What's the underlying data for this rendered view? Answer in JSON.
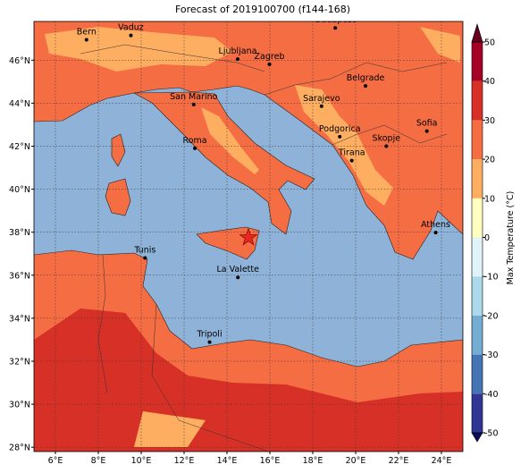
{
  "title": "Forecast of 2019100700 (f144-168)",
  "map": {
    "lonlim": [
      5,
      25
    ],
    "latlim": [
      27.8,
      47.8
    ],
    "grid": true,
    "lon_ticks": [
      {
        "value": 6,
        "label": "6°E"
      },
      {
        "value": 8,
        "label": "8°E"
      },
      {
        "value": 10,
        "label": "10°E"
      },
      {
        "value": 12,
        "label": "12°E"
      },
      {
        "value": 14,
        "label": "14°E"
      },
      {
        "value": 16,
        "label": "16°E"
      },
      {
        "value": 18,
        "label": "18°E"
      },
      {
        "value": 20,
        "label": "20°E"
      },
      {
        "value": 22,
        "label": "22°E"
      },
      {
        "value": 24,
        "label": "24°E"
      }
    ],
    "lat_ticks": [
      {
        "value": 28,
        "label": "28°N"
      },
      {
        "value": 30,
        "label": "30°N"
      },
      {
        "value": 32,
        "label": "32°N"
      },
      {
        "value": 34,
        "label": "34°N"
      },
      {
        "value": 36,
        "label": "36°N"
      },
      {
        "value": 38,
        "label": "38°N"
      },
      {
        "value": 40,
        "label": "40°N"
      },
      {
        "value": 42,
        "label": "42°N"
      },
      {
        "value": 44,
        "label": "44°N"
      },
      {
        "value": 46,
        "label": "46°N"
      }
    ],
    "cities": [
      {
        "name": "Bern",
        "lon": 7.45,
        "lat": 46.95
      },
      {
        "name": "Vaduz",
        "lon": 9.52,
        "lat": 47.15
      },
      {
        "name": "Budapest",
        "lon": 19.05,
        "lat": 47.5
      },
      {
        "name": "Ljubljana",
        "lon": 14.5,
        "lat": 46.05
      },
      {
        "name": "Zagreb",
        "lon": 15.98,
        "lat": 45.81
      },
      {
        "name": "Belgrade",
        "lon": 20.46,
        "lat": 44.8
      },
      {
        "name": "San Marino",
        "lon": 12.45,
        "lat": 43.94
      },
      {
        "name": "Sarajevo",
        "lon": 18.41,
        "lat": 43.86
      },
      {
        "name": "Sofia",
        "lon": 23.32,
        "lat": 42.7
      },
      {
        "name": "Roma",
        "lon": 12.5,
        "lat": 41.9
      },
      {
        "name": "Podgorica",
        "lon": 19.26,
        "lat": 42.44
      },
      {
        "name": "Skopje",
        "lon": 21.43,
        "lat": 42.0
      },
      {
        "name": "Tirana",
        "lon": 19.82,
        "lat": 41.33
      },
      {
        "name": "Athens",
        "lon": 23.73,
        "lat": 37.98
      },
      {
        "name": "Tunis",
        "lon": 10.18,
        "lat": 36.8
      },
      {
        "name": "La Valette",
        "lon": 14.51,
        "lat": 35.9
      },
      {
        "name": "Tripoli",
        "lon": 13.19,
        "lat": 32.89
      }
    ],
    "marker": {
      "lon": 15.0,
      "lat": 37.75,
      "color": "#e8281e"
    }
  },
  "colorbar": {
    "label": "Max Temperature (°C)",
    "lim": [
      -50,
      50
    ],
    "ticks": [
      -50,
      -40,
      -30,
      -20,
      -10,
      0,
      10,
      20,
      30,
      40,
      50
    ],
    "colors": [
      "#313695",
      "#4575b4",
      "#74add1",
      "#abd9e9",
      "#e0f3f8",
      "#ffffbf",
      "#fdae61",
      "#f46d43",
      "#d73027",
      "#a50026"
    ],
    "extend_colors": [
      "#0c0c5c",
      "#67001f"
    ]
  }
}
